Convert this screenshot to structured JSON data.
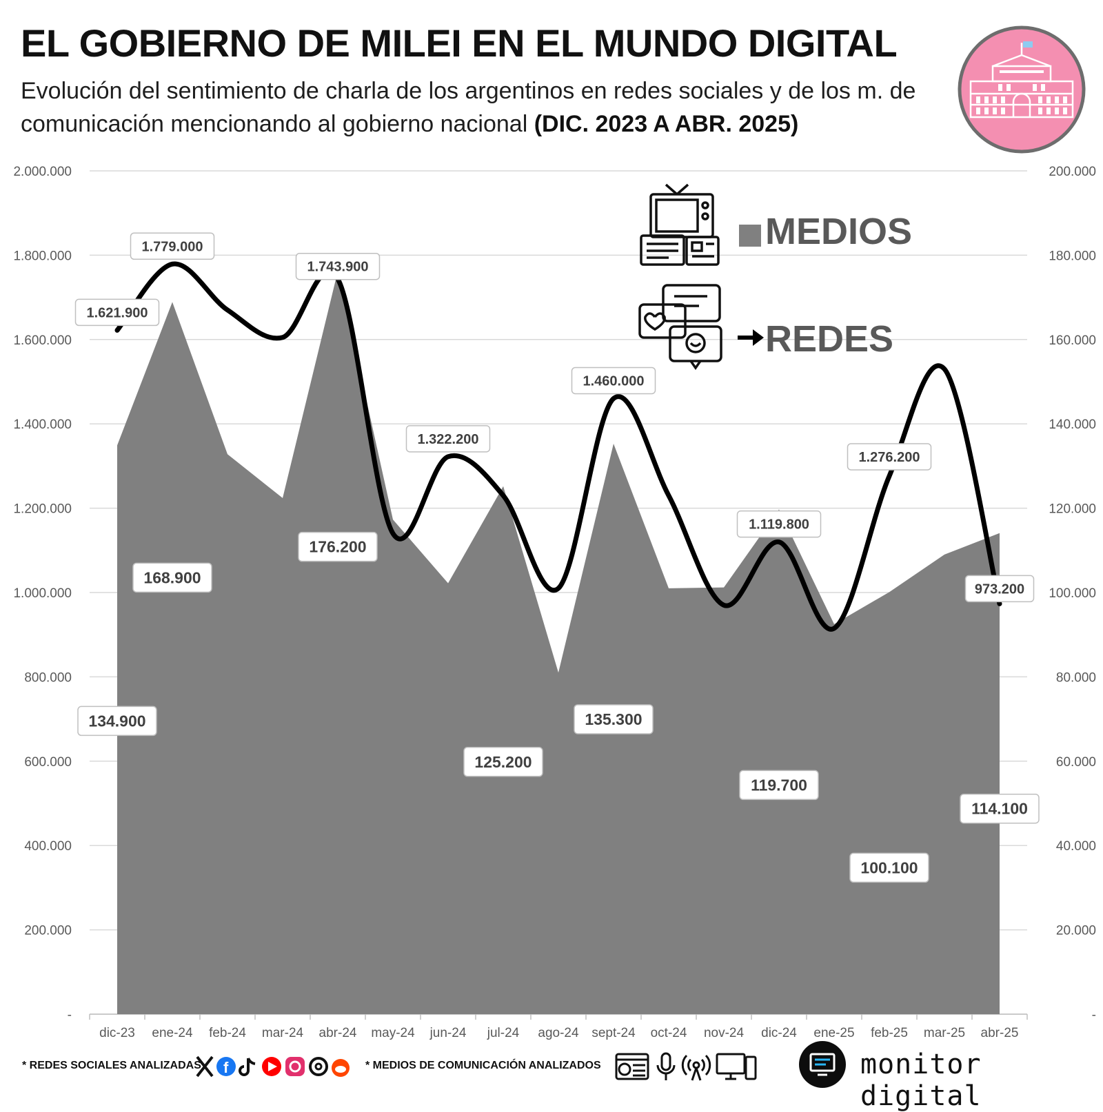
{
  "header": {
    "title": "EL GOBIERNO DE MILEI EN EL MUNDO DIGITAL",
    "subtitle_a": "Evolución del sentimiento de charla de los argentinos en redes sociales y de los m. de comunicación mencionando al gobierno nacional ",
    "subtitle_b": "(DIC. 2023 A ABR. 2025)"
  },
  "chart_data": {
    "type": "area",
    "categories": [
      "dic-23",
      "ene-24",
      "feb-24",
      "mar-24",
      "abr-24",
      "may-24",
      "jun-24",
      "jul-24",
      "ago-24",
      "sept-24",
      "oct-24",
      "nov-24",
      "dic-24",
      "ene-25",
      "feb-25",
      "mar-25",
      "abr-25"
    ],
    "y_left": {
      "min": 0,
      "max": 2000000,
      "ticks": [
        "-",
        "200.000",
        "400.000",
        "600.000",
        "800.000",
        "1.000.000",
        "1.200.000",
        "1.400.000",
        "1.600.000",
        "1.800.000",
        "2.000.000"
      ]
    },
    "y_right": {
      "min": 0,
      "max": 200000,
      "ticks": [
        "-",
        "20.000",
        "40.000",
        "60.000",
        "80.000",
        "100.000",
        "120.000",
        "140.000",
        "160.000",
        "180.000",
        "200.000"
      ]
    },
    "grid": true,
    "series": [
      {
        "name": "MEDIOS",
        "kind": "area",
        "axis": "right",
        "color": "#808080",
        "values": [
          134900,
          168900,
          132800,
          122400,
          176200,
          117300,
          102200,
          125200,
          81000,
          135300,
          101000,
          101200,
          119700,
          92500,
          100100,
          109000,
          114100
        ],
        "labels": [
          {
            "index": 0,
            "text": "134.900"
          },
          {
            "index": 1,
            "text": "168.900"
          },
          {
            "index": 4,
            "text": "176.200"
          },
          {
            "index": 7,
            "text": "125.200"
          },
          {
            "index": 9,
            "text": "135.300"
          },
          {
            "index": 12,
            "text": "119.700"
          },
          {
            "index": 14,
            "text": "100.100"
          },
          {
            "index": 16,
            "text": "114.100"
          }
        ]
      },
      {
        "name": "REDES",
        "kind": "line",
        "axis": "left",
        "color": "#000000",
        "values": [
          1621900,
          1779000,
          1670000,
          1605000,
          1743900,
          1140000,
          1322200,
          1230000,
          1010000,
          1460000,
          1230000,
          970000,
          1119800,
          915000,
          1276200,
          1530000,
          973200
        ],
        "labels": [
          {
            "index": 0,
            "text": "1.621.900"
          },
          {
            "index": 1,
            "text": "1.779.000"
          },
          {
            "index": 4,
            "text": "1.743.900"
          },
          {
            "index": 6,
            "text": "1.322.200"
          },
          {
            "index": 9,
            "text": "1.460.000"
          },
          {
            "index": 12,
            "text": "1.119.800"
          },
          {
            "index": 14,
            "text": "1.276.200"
          },
          {
            "index": 16,
            "text": "973.200"
          }
        ]
      }
    ],
    "legend": {
      "placement": "top-right",
      "medios": "MEDIOS",
      "redes": "REDES"
    }
  },
  "footer": {
    "redes_text": "* REDES SOCIALES ANALIZADAS",
    "medios_text": "* MEDIOS DE COMUNICACIÓN ANALIZADOS",
    "brand": "monitor digital",
    "social_icons": [
      "x-icon",
      "facebook-icon",
      "tiktok-icon",
      "youtube-icon",
      "instagram-icon",
      "threads-icon",
      "reddit-icon"
    ],
    "media_icons": [
      "web-news-icon",
      "microphone-icon",
      "broadcast-icon",
      "tv-monitor-icon"
    ]
  },
  "colors": {
    "medios_area": "#808080",
    "redes_line": "#000000",
    "logo_pink": "#f48fb1",
    "grid": "#d9d9d9"
  }
}
